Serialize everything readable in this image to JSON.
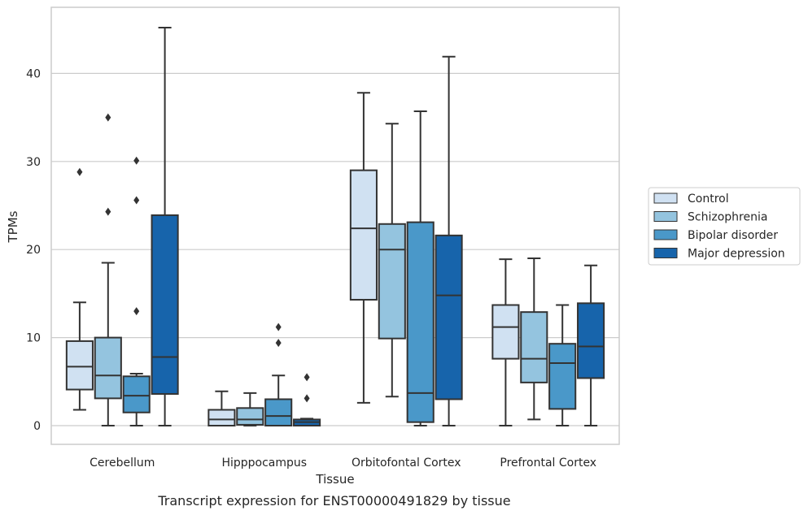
{
  "caption": "Transcript expression for ENST00000491829 by tissue",
  "chart_data": {
    "type": "box",
    "title": "",
    "xlabel": "Tissue",
    "ylabel": "TPMs",
    "ylim": [
      -2.2,
      46.5
    ],
    "yticks": [
      0,
      10,
      20,
      30,
      40
    ],
    "grid": "horizontal",
    "legend_position": "right",
    "categories": [
      "Cerebellum",
      "Hipppocampus",
      "Orbitofontal Cortex",
      "Prefrontal Cortex"
    ],
    "series": [
      {
        "name": "Control",
        "color": "#d0e1f2",
        "boxes": [
          {
            "whisker_low": 1.8,
            "q1": 4.1,
            "median": 6.7,
            "q3": 9.6,
            "whisker_high": 14.0,
            "outliers": [
              28.8
            ]
          },
          {
            "whisker_low": 0.0,
            "q1": 0.0,
            "median": 0.7,
            "q3": 1.8,
            "whisker_high": 3.9,
            "outliers": []
          },
          {
            "whisker_low": 2.6,
            "q1": 14.3,
            "median": 22.4,
            "q3": 29.0,
            "whisker_high": 37.8,
            "outliers": []
          },
          {
            "whisker_low": 0.0,
            "q1": 7.6,
            "median": 11.2,
            "q3": 13.7,
            "whisker_high": 18.9,
            "outliers": []
          }
        ]
      },
      {
        "name": "Schizophrenia",
        "color": "#94c4df",
        "boxes": [
          {
            "whisker_low": 0.0,
            "q1": 3.1,
            "median": 5.7,
            "q3": 10.0,
            "whisker_high": 18.5,
            "outliers": [
              24.3,
              35.0
            ]
          },
          {
            "whisker_low": 0.0,
            "q1": 0.1,
            "median": 0.7,
            "q3": 2.0,
            "whisker_high": 3.7,
            "outliers": []
          },
          {
            "whisker_low": 3.3,
            "q1": 9.9,
            "median": 20.0,
            "q3": 22.9,
            "whisker_high": 34.3,
            "outliers": []
          },
          {
            "whisker_low": 0.7,
            "q1": 4.9,
            "median": 7.6,
            "q3": 12.9,
            "whisker_high": 19.0,
            "outliers": []
          }
        ]
      },
      {
        "name": "Bipolar disorder",
        "color": "#4a98c9",
        "boxes": [
          {
            "whisker_low": 0.0,
            "q1": 1.5,
            "median": 3.4,
            "q3": 5.6,
            "whisker_high": 5.9,
            "outliers": [
              13.0,
              25.6,
              30.1
            ]
          },
          {
            "whisker_low": 0.0,
            "q1": 0.0,
            "median": 1.1,
            "q3": 3.0,
            "whisker_high": 5.7,
            "outliers": [
              9.4,
              11.2
            ]
          },
          {
            "whisker_low": 0.0,
            "q1": 0.4,
            "median": 3.7,
            "q3": 23.1,
            "whisker_high": 35.7,
            "outliers": []
          },
          {
            "whisker_low": 0.0,
            "q1": 1.9,
            "median": 7.1,
            "q3": 9.3,
            "whisker_high": 13.7,
            "outliers": []
          }
        ]
      },
      {
        "name": "Major depression",
        "color": "#1764ab",
        "boxes": [
          {
            "whisker_low": 0.0,
            "q1": 3.6,
            "median": 7.8,
            "q3": 23.9,
            "whisker_high": 45.2,
            "outliers": []
          },
          {
            "whisker_low": 0.0,
            "q1": 0.0,
            "median": 0.4,
            "q3": 0.7,
            "whisker_high": 0.8,
            "outliers": [
              3.1,
              5.5
            ]
          },
          {
            "whisker_low": 0.0,
            "q1": 3.0,
            "median": 14.8,
            "q3": 21.6,
            "whisker_high": 41.9,
            "outliers": []
          },
          {
            "whisker_low": 0.0,
            "q1": 5.4,
            "median": 9.0,
            "q3": 13.9,
            "whisker_high": 18.2,
            "outliers": []
          }
        ]
      }
    ]
  }
}
